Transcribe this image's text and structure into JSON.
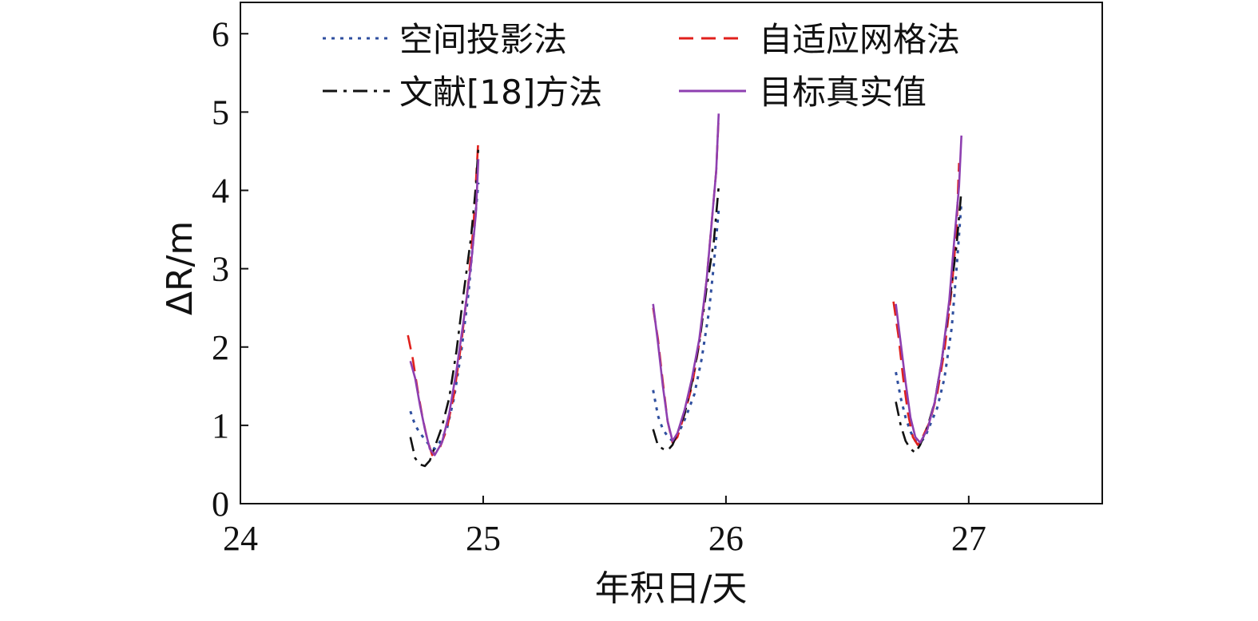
{
  "chart_data": {
    "type": "line",
    "title": "",
    "xlabel": "年积日/天",
    "ylabel": "ΔR/m",
    "xlim": [
      24,
      27.55
    ],
    "ylim": [
      0,
      6.4
    ],
    "xticks": [
      "24",
      "25",
      "26",
      "27"
    ],
    "yticks": [
      "0",
      "1",
      "2",
      "3",
      "4",
      "5",
      "6"
    ],
    "grid": false,
    "legend_position": "top",
    "series": [
      {
        "name": "空间投影法",
        "style": "dotted",
        "color": "#2f4f9f",
        "segments": [
          [
            [
              24.7,
              1.18
            ],
            [
              24.72,
              1.0
            ],
            [
              24.74,
              0.9
            ],
            [
              24.76,
              0.82
            ],
            [
              24.78,
              0.74
            ],
            [
              24.8,
              0.7
            ],
            [
              24.82,
              0.78
            ],
            [
              24.85,
              0.95
            ],
            [
              24.88,
              1.35
            ],
            [
              24.91,
              1.95
            ],
            [
              24.94,
              2.7
            ],
            [
              24.96,
              3.4
            ],
            [
              24.98,
              4.1
            ]
          ],
          [
            [
              25.7,
              1.45
            ],
            [
              25.72,
              1.12
            ],
            [
              25.74,
              0.95
            ],
            [
              25.76,
              0.86
            ],
            [
              25.78,
              0.8
            ],
            [
              25.8,
              0.88
            ],
            [
              25.82,
              1.0
            ],
            [
              25.84,
              1.15
            ],
            [
              25.87,
              1.4
            ],
            [
              25.9,
              1.85
            ],
            [
              25.93,
              2.45
            ],
            [
              25.95,
              3.05
            ],
            [
              25.97,
              3.75
            ]
          ],
          [
            [
              26.7,
              1.68
            ],
            [
              26.72,
              1.35
            ],
            [
              26.74,
              1.1
            ],
            [
              26.76,
              0.92
            ],
            [
              26.78,
              0.8
            ],
            [
              26.8,
              0.78
            ],
            [
              26.82,
              0.85
            ],
            [
              26.84,
              1.0
            ],
            [
              26.87,
              1.22
            ],
            [
              26.9,
              1.6
            ],
            [
              26.93,
              2.25
            ],
            [
              26.95,
              3.0
            ],
            [
              26.97,
              3.85
            ]
          ]
        ]
      },
      {
        "name": "自适应网格法",
        "style": "dashed",
        "color": "#e0201c",
        "segments": [
          [
            [
              24.69,
              2.15
            ],
            [
              24.71,
              1.85
            ],
            [
              24.73,
              1.45
            ],
            [
              24.75,
              1.1
            ],
            [
              24.77,
              0.82
            ],
            [
              24.79,
              0.62
            ],
            [
              24.82,
              0.7
            ],
            [
              24.85,
              0.95
            ],
            [
              24.88,
              1.4
            ],
            [
              24.91,
              2.05
            ],
            [
              24.94,
              2.85
            ],
            [
              24.96,
              3.55
            ],
            [
              24.97,
              4.1
            ],
            [
              24.98,
              4.65
            ]
          ],
          [
            [
              25.7,
              2.5
            ],
            [
              25.72,
              2.1
            ],
            [
              25.74,
              1.55
            ],
            [
              25.76,
              1.05
            ],
            [
              25.78,
              0.78
            ],
            [
              25.8,
              0.85
            ],
            [
              25.83,
              1.15
            ],
            [
              25.86,
              1.5
            ],
            [
              25.89,
              2.05
            ],
            [
              25.92,
              2.85
            ],
            [
              25.94,
              3.55
            ],
            [
              25.96,
              4.25
            ],
            [
              25.97,
              4.95
            ]
          ],
          [
            [
              26.69,
              2.58
            ],
            [
              26.71,
              2.15
            ],
            [
              26.73,
              1.6
            ],
            [
              26.75,
              1.15
            ],
            [
              26.77,
              0.85
            ],
            [
              26.79,
              0.75
            ],
            [
              26.81,
              0.85
            ],
            [
              26.84,
              1.05
            ],
            [
              26.87,
              1.4
            ],
            [
              26.9,
              1.95
            ],
            [
              26.93,
              2.75
            ],
            [
              26.95,
              3.5
            ],
            [
              26.96,
              4.35
            ]
          ]
        ]
      },
      {
        "name": "文献[18]方法",
        "style": "dashdot",
        "color": "#111111",
        "segments": [
          [
            [
              24.7,
              0.85
            ],
            [
              24.72,
              0.58
            ],
            [
              24.74,
              0.5
            ],
            [
              24.76,
              0.48
            ],
            [
              24.78,
              0.55
            ],
            [
              24.8,
              0.72
            ],
            [
              24.83,
              0.98
            ],
            [
              24.86,
              1.35
            ],
            [
              24.89,
              1.95
            ],
            [
              24.92,
              2.7
            ],
            [
              24.95,
              3.4
            ],
            [
              24.97,
              4.05
            ],
            [
              24.98,
              4.55
            ]
          ],
          [
            [
              25.7,
              0.95
            ],
            [
              25.72,
              0.74
            ],
            [
              25.74,
              0.7
            ],
            [
              25.76,
              0.68
            ],
            [
              25.78,
              0.75
            ],
            [
              25.8,
              0.9
            ],
            [
              25.83,
              1.15
            ],
            [
              25.86,
              1.55
            ],
            [
              25.89,
              2.05
            ],
            [
              25.92,
              2.75
            ],
            [
              25.95,
              3.35
            ],
            [
              25.97,
              4.05
            ]
          ],
          [
            [
              26.7,
              1.3
            ],
            [
              26.72,
              1.0
            ],
            [
              26.74,
              0.8
            ],
            [
              26.76,
              0.7
            ],
            [
              26.78,
              0.65
            ],
            [
              26.8,
              0.75
            ],
            [
              26.83,
              0.98
            ],
            [
              26.86,
              1.3
            ],
            [
              26.89,
              1.85
            ],
            [
              26.92,
              2.55
            ],
            [
              26.95,
              3.3
            ],
            [
              26.97,
              4.0
            ]
          ]
        ]
      },
      {
        "name": "目标真实值",
        "style": "solid",
        "color": "#8e3fb0",
        "segments": [
          [
            [
              24.7,
              1.82
            ],
            [
              24.72,
              1.6
            ],
            [
              24.74,
              1.25
            ],
            [
              24.76,
              0.95
            ],
            [
              24.78,
              0.7
            ],
            [
              24.8,
              0.62
            ],
            [
              24.83,
              0.78
            ],
            [
              24.86,
              1.15
            ],
            [
              24.89,
              1.7
            ],
            [
              24.92,
              2.35
            ],
            [
              24.95,
              3.05
            ],
            [
              24.97,
              3.7
            ],
            [
              24.98,
              4.4
            ]
          ],
          [
            [
              25.7,
              2.55
            ],
            [
              25.72,
              2.05
            ],
            [
              25.74,
              1.5
            ],
            [
              25.76,
              1.05
            ],
            [
              25.78,
              0.8
            ],
            [
              25.8,
              0.9
            ],
            [
              25.83,
              1.2
            ],
            [
              25.86,
              1.6
            ],
            [
              25.89,
              2.1
            ],
            [
              25.92,
              2.85
            ],
            [
              25.94,
              3.55
            ],
            [
              25.96,
              4.25
            ],
            [
              25.97,
              4.98
            ]
          ],
          [
            [
              26.7,
              2.55
            ],
            [
              26.72,
              2.05
            ],
            [
              26.74,
              1.55
            ],
            [
              26.76,
              1.1
            ],
            [
              26.78,
              0.85
            ],
            [
              26.8,
              0.78
            ],
            [
              26.83,
              0.95
            ],
            [
              26.86,
              1.3
            ],
            [
              26.89,
              1.85
            ],
            [
              26.92,
              2.6
            ],
            [
              26.94,
              3.35
            ],
            [
              26.96,
              4.05
            ],
            [
              26.97,
              4.7
            ]
          ]
        ]
      }
    ]
  }
}
